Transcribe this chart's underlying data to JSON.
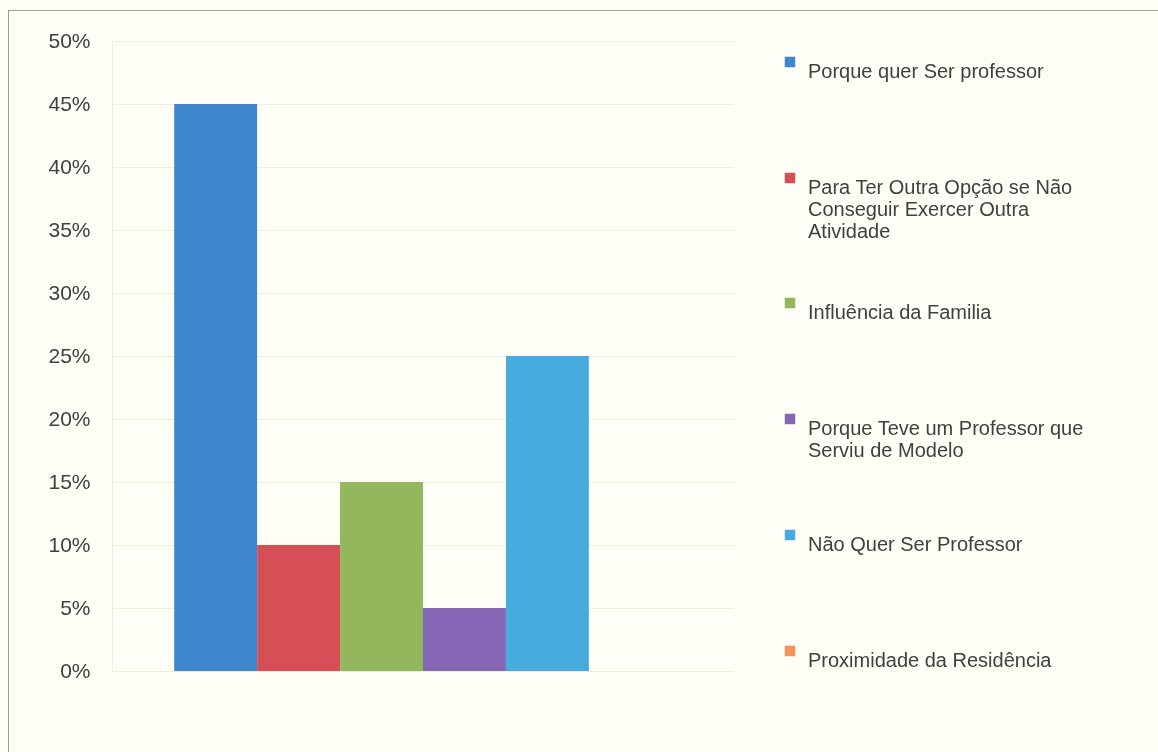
{
  "chart_data": {
    "type": "bar",
    "categories": [
      null
    ],
    "series": [
      {
        "name": "Porque quer Ser professor",
        "color": "#3f87cd",
        "values": [
          45
        ]
      },
      {
        "name": "Para Ter Outra Opção se Não Conseguir Exercer Outra Atividade",
        "color": "#d64f57",
        "values": [
          10
        ]
      },
      {
        "name": "Influência da Familia",
        "color": "#92b75c",
        "values": [
          15
        ]
      },
      {
        "name": "Porque Teve um Professor que Serviu de Modelo",
        "color": "#8466b5",
        "values": [
          5
        ]
      },
      {
        "name": "Não Quer Ser Professor",
        "color": "#47acdd",
        "values": [
          25
        ]
      },
      {
        "name": "Proximidade da Residência",
        "color": "#f59458",
        "values": [
          0
        ]
      }
    ],
    "ylim": [
      0,
      50
    ],
    "yticks": [
      {
        "value": 0,
        "label": "0%"
      },
      {
        "value": 5,
        "label": "5%"
      },
      {
        "value": 10,
        "label": "10%"
      },
      {
        "value": 15,
        "label": "15%"
      },
      {
        "value": 20,
        "label": "20%"
      },
      {
        "value": 25,
        "label": "25%"
      },
      {
        "value": 30,
        "label": "30%"
      },
      {
        "value": 35,
        "label": "35%"
      },
      {
        "value": 40,
        "label": "40%"
      },
      {
        "value": 45,
        "label": "45%"
      },
      {
        "value": 50,
        "label": "50%"
      }
    ],
    "grid": "y",
    "legend": "right"
  }
}
